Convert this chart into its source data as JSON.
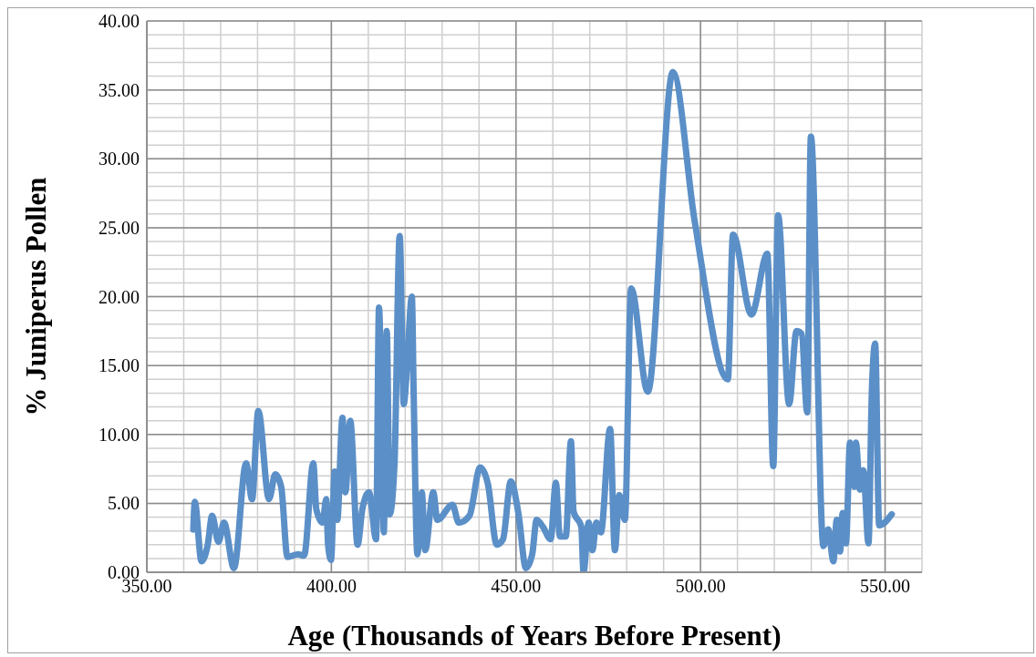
{
  "chart_data": {
    "type": "line",
    "xlabel": "Age (Thousands of Years Before Present)",
    "ylabel": "% Juniperus Pollen",
    "xlim": [
      350,
      560
    ],
    "ylim": [
      0,
      40
    ],
    "xticks": [
      {
        "value": 350,
        "label": "350.00"
      },
      {
        "value": 360,
        "label": null
      },
      {
        "value": 370,
        "label": null
      },
      {
        "value": 380,
        "label": null
      },
      {
        "value": 390,
        "label": null
      },
      {
        "value": 400,
        "label": "400.00"
      },
      {
        "value": 410,
        "label": null
      },
      {
        "value": 420,
        "label": null
      },
      {
        "value": 430,
        "label": null
      },
      {
        "value": 440,
        "label": null
      },
      {
        "value": 450,
        "label": "450.00"
      },
      {
        "value": 460,
        "label": null
      },
      {
        "value": 470,
        "label": null
      },
      {
        "value": 480,
        "label": null
      },
      {
        "value": 490,
        "label": null
      },
      {
        "value": 500,
        "label": "500.00"
      },
      {
        "value": 510,
        "label": null
      },
      {
        "value": 520,
        "label": null
      },
      {
        "value": 530,
        "label": null
      },
      {
        "value": 540,
        "label": null
      },
      {
        "value": 550,
        "label": "550.00"
      },
      {
        "value": 560,
        "label": null
      }
    ],
    "yticks": [
      {
        "value": 0,
        "label": "0.00"
      },
      {
        "value": 1,
        "label": null
      },
      {
        "value": 2,
        "label": null
      },
      {
        "value": 3,
        "label": null
      },
      {
        "value": 4,
        "label": null
      },
      {
        "value": 5,
        "label": "5.00"
      },
      {
        "value": 6,
        "label": null
      },
      {
        "value": 7,
        "label": null
      },
      {
        "value": 8,
        "label": null
      },
      {
        "value": 9,
        "label": null
      },
      {
        "value": 10,
        "label": "10.00"
      },
      {
        "value": 11,
        "label": null
      },
      {
        "value": 12,
        "label": null
      },
      {
        "value": 13,
        "label": null
      },
      {
        "value": 14,
        "label": null
      },
      {
        "value": 15,
        "label": "15.00"
      },
      {
        "value": 16,
        "label": null
      },
      {
        "value": 17,
        "label": null
      },
      {
        "value": 18,
        "label": null
      },
      {
        "value": 19,
        "label": null
      },
      {
        "value": 20,
        "label": "20.00"
      },
      {
        "value": 21,
        "label": null
      },
      {
        "value": 22,
        "label": null
      },
      {
        "value": 23,
        "label": null
      },
      {
        "value": 24,
        "label": null
      },
      {
        "value": 25,
        "label": "25.00"
      },
      {
        "value": 26,
        "label": null
      },
      {
        "value": 27,
        "label": null
      },
      {
        "value": 28,
        "label": null
      },
      {
        "value": 29,
        "label": null
      },
      {
        "value": 30,
        "label": "30.00"
      },
      {
        "value": 31,
        "label": null
      },
      {
        "value": 32,
        "label": null
      },
      {
        "value": 33,
        "label": null
      },
      {
        "value": 34,
        "label": null
      },
      {
        "value": 35,
        "label": "35.00"
      },
      {
        "value": 36,
        "label": null
      },
      {
        "value": 37,
        "label": null
      },
      {
        "value": 38,
        "label": null
      },
      {
        "value": 39,
        "label": null
      },
      {
        "value": 40,
        "label": "40.00"
      }
    ],
    "grid": true,
    "legend": false,
    "marker": "none",
    "line_style": "solid",
    "series": [
      {
        "color": "#5b8fc7",
        "x": [
          362.6,
          363.0,
          364.8,
          366.5,
          367.7,
          369.4,
          370.9,
          373.6,
          376.9,
          378.5,
          380.2,
          383.1,
          384.8,
          386.4,
          388.1,
          391.0,
          392.6,
          395.1,
          395.9,
          397.6,
          398.6,
          399.1,
          399.9,
          400.9,
          401.6,
          403.0,
          403.8,
          405.1,
          407.1,
          408.4,
          410.2,
          412.1,
          412.9,
          414.2,
          415.0,
          415.8,
          417.1,
          418.5,
          419.6,
          420.4,
          421.8,
          422.3,
          423.3,
          424.5,
          425.4,
          427.6,
          428.7,
          432.8,
          434.5,
          437.4,
          440.3,
          442.4,
          444.8,
          446.5,
          448.6,
          450.7,
          452.7,
          454.4,
          455.6,
          457.3,
          459.4,
          460.8,
          461.9,
          463.5,
          464.9,
          465.6,
          467.7,
          468.3,
          469.7,
          470.7,
          471.8,
          473.0,
          475.5,
          476.8,
          478.0,
          479.5,
          481.2,
          485.7,
          492.5,
          498.4,
          507.4,
          508.8,
          513.8,
          518.1,
          519.7,
          521.0,
          524.0,
          526.0,
          527.4,
          528.9,
          529.9,
          533.3,
          534.6,
          536.0,
          536.9,
          537.8,
          538.5,
          539.4,
          540.5,
          541.7,
          542.1,
          543.2,
          544.1,
          545.5,
          546.4,
          547.3,
          548.4,
          551.8
        ],
        "values": [
          3.1,
          5.1,
          0.8,
          2.0,
          4.1,
          2.2,
          3.6,
          0.3,
          7.9,
          5.3,
          11.7,
          5.3,
          7.1,
          6.2,
          1.1,
          1.3,
          1.2,
          7.9,
          4.6,
          3.6,
          5.3,
          2.0,
          0.9,
          7.3,
          3.8,
          11.2,
          5.8,
          11.0,
          2.0,
          4.6,
          5.8,
          2.4,
          19.2,
          2.9,
          17.5,
          4.2,
          7.9,
          24.4,
          12.2,
          14.5,
          20.0,
          12.8,
          1.3,
          5.8,
          1.6,
          5.8,
          3.8,
          4.9,
          3.6,
          4.1,
          7.6,
          6.4,
          2.0,
          2.4,
          6.6,
          4.2,
          0.3,
          1.3,
          3.8,
          3.3,
          2.4,
          6.5,
          2.6,
          2.6,
          9.5,
          4.4,
          3.3,
          0.0,
          3.6,
          1.6,
          3.6,
          2.9,
          10.4,
          1.6,
          5.6,
          3.8,
          20.6,
          13.1,
          36.3,
          25.5,
          14.0,
          24.5,
          18.7,
          23.1,
          7.7,
          25.9,
          12.2,
          17.5,
          17.3,
          11.6,
          31.6,
          1.9,
          3.1,
          0.8,
          3.8,
          1.5,
          4.3,
          2.1,
          9.4,
          6.2,
          9.4,
          6.0,
          7.4,
          2.1,
          13.0,
          16.6,
          3.4,
          4.2
        ]
      }
    ]
  }
}
